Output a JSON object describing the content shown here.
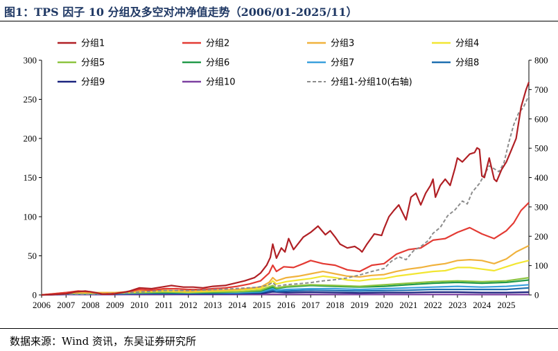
{
  "header": {
    "title": "图1：TPS 因子 10 分组及多空对冲净值走势（2006/01-2025/11）"
  },
  "footer": {
    "source": "数据来源：Wind 资讯，东吴证券研究所"
  },
  "colors": {
    "g1": "#b01f24",
    "g2": "#e33a33",
    "g3": "#f0b23c",
    "g4": "#f2e631",
    "g5": "#8cc43f",
    "g6": "#229a4a",
    "g7": "#3aa0dd",
    "g8": "#1d6fb0",
    "g9": "#1a237e",
    "g10": "#7b3fa0",
    "ls": "#8c8c8c"
  },
  "chart_data": {
    "type": "line",
    "title": "",
    "xlabel": "",
    "ylabel": "",
    "xlim": [
      2006.0,
      2025.92
    ],
    "ylim": [
      0,
      300
    ],
    "y2lim": [
      0,
      800
    ],
    "yticks": [
      0,
      50,
      100,
      150,
      200,
      250,
      300
    ],
    "y2ticks": [
      0,
      100,
      200,
      300,
      400,
      500,
      600,
      700,
      800
    ],
    "xticks": [
      "2006",
      "2007",
      "2008",
      "2009",
      "2010",
      "2011",
      "2012",
      "2013",
      "2014",
      "2015",
      "2016",
      "2017",
      "2018",
      "2019",
      "2020",
      "2021",
      "2022",
      "2023",
      "2024",
      "2025"
    ],
    "grid": false,
    "legend_position": "top",
    "series": [
      {
        "name": "分组1",
        "key": "g1",
        "axis": "left",
        "dashed": false,
        "x": [
          2006.0,
          2006.5,
          2007.0,
          2007.4,
          2007.8,
          2008.2,
          2008.5,
          2008.9,
          2009.3,
          2009.6,
          2010.0,
          2010.5,
          2010.9,
          2011.3,
          2011.8,
          2012.2,
          2012.6,
          2013.0,
          2013.5,
          2013.9,
          2014.3,
          2014.7,
          2014.95,
          2015.2,
          2015.35,
          2015.45,
          2015.6,
          2015.8,
          2015.95,
          2016.1,
          2016.3,
          2016.5,
          2016.7,
          2017.0,
          2017.3,
          2017.6,
          2017.8,
          2018.0,
          2018.2,
          2018.5,
          2018.8,
          2019.0,
          2019.1,
          2019.3,
          2019.6,
          2019.9,
          2020.0,
          2020.2,
          2020.4,
          2020.6,
          2020.9,
          2021.1,
          2021.3,
          2021.5,
          2021.7,
          2021.9,
          2022.0,
          2022.1,
          2022.3,
          2022.5,
          2022.7,
          2022.9,
          2023.0,
          2023.2,
          2023.5,
          2023.7,
          2023.8,
          2023.9,
          2024.0,
          2024.1,
          2024.3,
          2024.5,
          2024.6,
          2024.8,
          2025.0,
          2025.2,
          2025.4,
          2025.6,
          2025.8,
          2025.92
        ],
        "values": [
          0,
          0.5,
          1.5,
          4,
          5,
          3,
          1,
          1,
          3,
          5,
          9,
          8,
          10,
          12,
          10,
          10,
          9,
          11,
          12,
          15,
          18,
          22,
          28,
          38,
          48,
          65,
          47,
          60,
          55,
          72,
          58,
          66,
          74,
          80,
          88,
          77,
          82,
          74,
          65,
          60,
          62,
          58,
          55,
          65,
          78,
          76,
          85,
          100,
          108,
          115,
          96,
          125,
          130,
          115,
          130,
          140,
          148,
          125,
          140,
          148,
          140,
          162,
          175,
          170,
          180,
          182,
          188,
          186,
          152,
          150,
          175,
          148,
          145,
          160,
          170,
          185,
          200,
          240,
          262,
          272
        ]
      },
      {
        "name": "分组2",
        "key": "g2",
        "axis": "left",
        "dashed": false,
        "x": [
          2006.0,
          2007.0,
          2007.5,
          2008.0,
          2008.5,
          2009.0,
          2009.5,
          2010.0,
          2010.5,
          2011.0,
          2011.5,
          2012.0,
          2012.5,
          2013.0,
          2013.5,
          2014.0,
          2014.5,
          2014.95,
          2015.3,
          2015.45,
          2015.6,
          2015.9,
          2016.3,
          2016.7,
          2017.0,
          2017.5,
          2018.0,
          2018.5,
          2019.0,
          2019.5,
          2020.0,
          2020.5,
          2021.0,
          2021.5,
          2022.0,
          2022.5,
          2023.0,
          2023.5,
          2024.0,
          2024.5,
          2025.0,
          2025.3,
          2025.6,
          2025.92
        ],
        "values": [
          0,
          3,
          5,
          4,
          1,
          2,
          4,
          7,
          6,
          8,
          8,
          7,
          7,
          8,
          9,
          11,
          14,
          18,
          28,
          38,
          30,
          36,
          35,
          40,
          44,
          40,
          38,
          32,
          30,
          38,
          40,
          52,
          58,
          60,
          70,
          72,
          80,
          86,
          78,
          72,
          82,
          92,
          108,
          118
        ]
      },
      {
        "name": "分组3",
        "key": "g3",
        "axis": "left",
        "dashed": false,
        "x": [
          2006.0,
          2007.0,
          2008.0,
          2009.0,
          2010.0,
          2011.0,
          2012.0,
          2013.0,
          2014.0,
          2014.95,
          2015.3,
          2015.45,
          2015.6,
          2016.0,
          2016.5,
          2017.0,
          2017.5,
          2018.0,
          2018.5,
          2019.0,
          2019.5,
          2020.0,
          2020.5,
          2021.0,
          2021.5,
          2022.0,
          2022.5,
          2023.0,
          2023.5,
          2024.0,
          2024.5,
          2025.0,
          2025.4,
          2025.92
        ],
        "values": [
          0,
          3,
          3,
          3,
          5,
          6,
          5,
          6,
          7,
          10,
          16,
          22,
          18,
          22,
          24,
          27,
          30,
          27,
          24,
          23,
          25,
          26,
          30,
          33,
          35,
          38,
          40,
          44,
          45,
          44,
          40,
          46,
          55,
          63
        ]
      },
      {
        "name": "分组4",
        "key": "g4",
        "axis": "left",
        "dashed": false,
        "x": [
          2006.0,
          2007.0,
          2008.0,
          2009.0,
          2010.0,
          2011.0,
          2012.0,
          2013.0,
          2014.0,
          2014.95,
          2015.3,
          2015.45,
          2015.6,
          2016.0,
          2016.5,
          2017.0,
          2017.5,
          2018.0,
          2018.5,
          2019.0,
          2019.5,
          2020.0,
          2020.5,
          2021.0,
          2021.5,
          2022.0,
          2022.5,
          2023.0,
          2023.5,
          2024.0,
          2024.5,
          2025.0,
          2025.4,
          2025.92
        ],
        "values": [
          0,
          2.5,
          2.5,
          2.5,
          4,
          5,
          4,
          5,
          6,
          8,
          13,
          18,
          14,
          17,
          19,
          21,
          24,
          22,
          19,
          18,
          20,
          21,
          24,
          26,
          28,
          30,
          31,
          35,
          35,
          33,
          31,
          36,
          40,
          44
        ]
      },
      {
        "name": "分组5",
        "key": "g5",
        "axis": "left",
        "dashed": false,
        "x": [
          2006.0,
          2007.0,
          2008.0,
          2009.0,
          2010.0,
          2011.0,
          2012.0,
          2013.0,
          2014.0,
          2014.95,
          2015.45,
          2015.6,
          2016.0,
          2017.0,
          2018.0,
          2019.0,
          2020.0,
          2021.0,
          2022.0,
          2023.0,
          2024.0,
          2025.0,
          2025.92
        ],
        "values": [
          0,
          2,
          2,
          2,
          3,
          4,
          3,
          4,
          4,
          6,
          12,
          9,
          11,
          13,
          12,
          11,
          13,
          15,
          17,
          18,
          17,
          18,
          22
        ]
      },
      {
        "name": "分组6",
        "key": "g6",
        "axis": "left",
        "dashed": false,
        "x": [
          2006.0,
          2007.0,
          2008.0,
          2009.0,
          2010.0,
          2011.0,
          2012.0,
          2013.0,
          2014.0,
          2014.95,
          2015.45,
          2015.6,
          2016.0,
          2017.0,
          2018.0,
          2019.0,
          2020.0,
          2021.0,
          2022.0,
          2023.0,
          2024.0,
          2025.0,
          2025.92
        ],
        "values": [
          0,
          2,
          2,
          2,
          3,
          3,
          3,
          3,
          4,
          5,
          10,
          8,
          10,
          12,
          11,
          10,
          11,
          13,
          15,
          16,
          15,
          16,
          19
        ]
      },
      {
        "name": "分组7",
        "key": "g7",
        "axis": "left",
        "dashed": false,
        "x": [
          2006.0,
          2007.0,
          2008.0,
          2009.0,
          2010.0,
          2011.0,
          2012.0,
          2013.0,
          2014.0,
          2014.95,
          2015.45,
          2015.6,
          2016.0,
          2017.0,
          2018.0,
          2019.0,
          2020.0,
          2021.0,
          2022.0,
          2023.0,
          2024.0,
          2025.0,
          2025.92
        ],
        "values": [
          0,
          1.5,
          1.5,
          1.5,
          2.5,
          3,
          2.5,
          3,
          3,
          4,
          8,
          6,
          7,
          8,
          8,
          7,
          8,
          9,
          10,
          11,
          10,
          11,
          13
        ]
      },
      {
        "name": "分组8",
        "key": "g8",
        "axis": "left",
        "dashed": false,
        "x": [
          2006.0,
          2007.0,
          2008.0,
          2009.0,
          2010.0,
          2011.0,
          2012.0,
          2013.0,
          2014.0,
          2014.95,
          2015.45,
          2015.6,
          2016.0,
          2017.0,
          2018.0,
          2019.0,
          2020.0,
          2021.0,
          2022.0,
          2023.0,
          2024.0,
          2025.0,
          2025.92
        ],
        "values": [
          0,
          1.2,
          1.2,
          1.2,
          2,
          2,
          2,
          2,
          2,
          3,
          6,
          4.5,
          5,
          6,
          5.5,
          5,
          5.5,
          6,
          7,
          7,
          7,
          7,
          9
        ]
      },
      {
        "name": "分组9",
        "key": "g9",
        "axis": "left",
        "dashed": false,
        "x": [
          2006.0,
          2007.0,
          2008.0,
          2009.0,
          2010.0,
          2011.0,
          2012.0,
          2013.0,
          2014.0,
          2015.0,
          2015.45,
          2016.0,
          2017.0,
          2018.0,
          2019.0,
          2020.0,
          2021.0,
          2022.0,
          2023.0,
          2024.0,
          2025.0,
          2025.92
        ],
        "values": [
          0,
          1,
          1,
          1,
          1.5,
          1.5,
          1.2,
          1.3,
          1.5,
          2,
          4,
          3,
          3.5,
          3,
          2.5,
          3,
          3,
          3.5,
          3.5,
          3,
          3,
          3.5
        ]
      },
      {
        "name": "分组10",
        "key": "g10",
        "axis": "left",
        "dashed": false,
        "x": [
          2006.0,
          2007.0,
          2008.0,
          2009.0,
          2010.0,
          2011.0,
          2012.0,
          2013.0,
          2014.0,
          2015.0,
          2015.45,
          2016.0,
          2017.0,
          2018.0,
          2019.0,
          2020.0,
          2021.0,
          2022.0,
          2023.0,
          2024.0,
          2025.0,
          2025.92
        ],
        "values": [
          0,
          0.5,
          0.4,
          0.4,
          0.6,
          0.6,
          0.5,
          0.5,
          0.5,
          0.6,
          0.9,
          0.7,
          0.7,
          0.6,
          0.5,
          0.5,
          0.5,
          0.5,
          0.5,
          0.4,
          0.4,
          0.4
        ]
      },
      {
        "name": "分组1-分组10(右轴)",
        "key": "ls",
        "axis": "right",
        "dashed": true,
        "x": [
          2006.0,
          2007.0,
          2008.0,
          2009.0,
          2010.0,
          2011.0,
          2012.0,
          2013.0,
          2014.0,
          2014.8,
          2015.2,
          2015.45,
          2015.6,
          2016.0,
          2016.5,
          2017.0,
          2017.5,
          2018.0,
          2018.5,
          2019.0,
          2019.5,
          2020.0,
          2020.3,
          2020.6,
          2020.9,
          2021.2,
          2021.5,
          2021.8,
          2022.0,
          2022.3,
          2022.6,
          2022.9,
          2023.2,
          2023.4,
          2023.6,
          2023.9,
          2024.1,
          2024.3,
          2024.5,
          2024.7,
          2024.9,
          2025.1,
          2025.3,
          2025.5,
          2025.7,
          2025.92
        ],
        "values": [
          0,
          3,
          2,
          5,
          10,
          15,
          15,
          18,
          22,
          26,
          32,
          42,
          30,
          35,
          38,
          42,
          48,
          52,
          58,
          68,
          80,
          90,
          115,
          130,
          120,
          150,
          165,
          185,
          210,
          230,
          270,
          290,
          320,
          310,
          350,
          380,
          410,
          440,
          430,
          420,
          450,
          520,
          580,
          620,
          640,
          680
        ]
      }
    ]
  },
  "legend": [
    {
      "key": "g1",
      "label": "分组1"
    },
    {
      "key": "g2",
      "label": "分组2"
    },
    {
      "key": "g3",
      "label": "分组3"
    },
    {
      "key": "g4",
      "label": "分组4"
    },
    {
      "key": "g5",
      "label": "分组5"
    },
    {
      "key": "g6",
      "label": "分组6"
    },
    {
      "key": "g7",
      "label": "分组7"
    },
    {
      "key": "g8",
      "label": "分组8"
    },
    {
      "key": "g9",
      "label": "分组9"
    },
    {
      "key": "g10",
      "label": "分组10"
    },
    {
      "key": "ls",
      "label": "分组1-分组10(右轴)"
    }
  ]
}
